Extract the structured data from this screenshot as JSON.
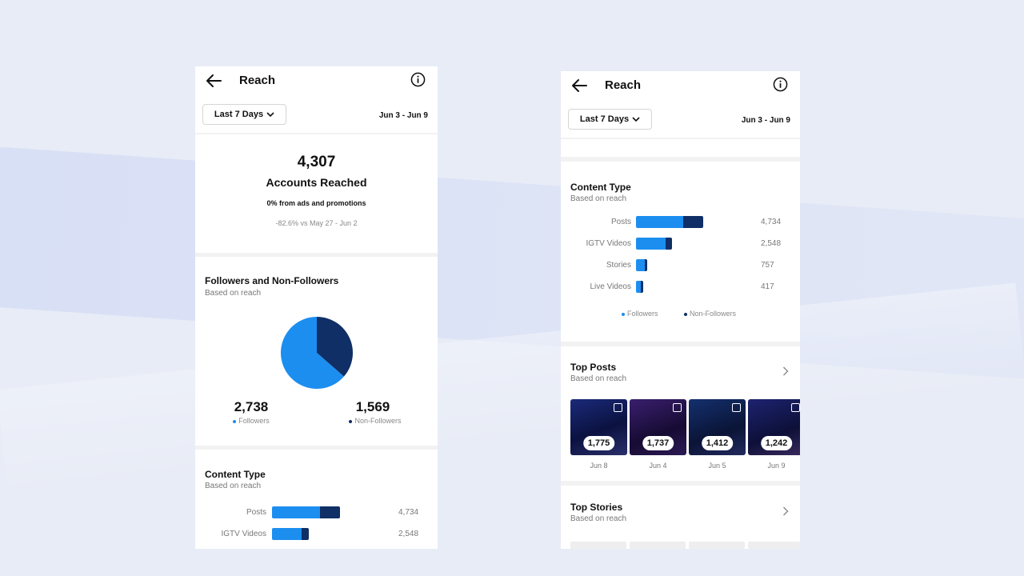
{
  "left": {
    "header": {
      "title": "Reach",
      "range_label": "Last 7 Days",
      "dates": "Jun 3 - Jun 9"
    },
    "summary": {
      "total": "4,307",
      "label": "Accounts Reached",
      "ads_note": "0% from ads and promotions",
      "compare": "-82.6% vs May 27 - Jun 2"
    },
    "followers_section": {
      "title": "Followers and Non-Followers",
      "subtitle": "Based on reach",
      "followers_value": "2,738",
      "followers_label": "Followers",
      "non_followers_value": "1,569",
      "non_followers_label": "Non-Followers"
    },
    "content_section": {
      "title": "Content Type",
      "subtitle": "Based on reach",
      "rows": [
        {
          "label": "Posts",
          "value": "4,734"
        },
        {
          "label": "IGTV Videos",
          "value": "2,548"
        }
      ]
    }
  },
  "right": {
    "header": {
      "title": "Reach",
      "range_label": "Last 7 Days",
      "dates": "Jun 3 - Jun 9"
    },
    "content_section": {
      "title": "Content Type",
      "subtitle": "Based on reach",
      "rows": [
        {
          "label": "Posts",
          "value": "4,734"
        },
        {
          "label": "IGTV Videos",
          "value": "2,548"
        },
        {
          "label": "Stories",
          "value": "757"
        },
        {
          "label": "Live Videos",
          "value": "417"
        }
      ],
      "legend_followers": "Followers",
      "legend_non_followers": "Non-Followers"
    },
    "top_posts": {
      "title": "Top Posts",
      "subtitle": "Based on reach",
      "items": [
        {
          "value": "1,775",
          "date": "Jun 8"
        },
        {
          "value": "1,737",
          "date": "Jun 4"
        },
        {
          "value": "1,412",
          "date": "Jun 5"
        },
        {
          "value": "1,242",
          "date": "Jun 9"
        }
      ]
    },
    "top_stories": {
      "title": "Top Stories",
      "subtitle": "Based on reach"
    }
  },
  "chart_data": [
    {
      "type": "pie",
      "categories": [
        "Followers",
        "Non-Followers"
      ],
      "values": [
        2738,
        1569
      ],
      "colors": [
        "#1c8ef0",
        "#0f2f66"
      ]
    },
    {
      "type": "bar",
      "orientation": "horizontal",
      "stacked": true,
      "categories": [
        "Posts",
        "IGTV Videos",
        "Stories",
        "Live Videos"
      ],
      "totals": [
        4734,
        2548,
        757,
        417
      ],
      "series": [
        {
          "name": "Followers",
          "values": [
            3350,
            2070,
            610,
            330
          ],
          "color": "#1c8ef0"
        },
        {
          "name": "Non-Followers",
          "values": [
            1384,
            478,
            147,
            87
          ],
          "color": "#0f2f66"
        }
      ]
    }
  ],
  "icons": {
    "back": "arrow-left-icon",
    "info": "info-icon",
    "dropdown": "chevron-down-icon",
    "chevron_right": "chevron-right-icon"
  }
}
